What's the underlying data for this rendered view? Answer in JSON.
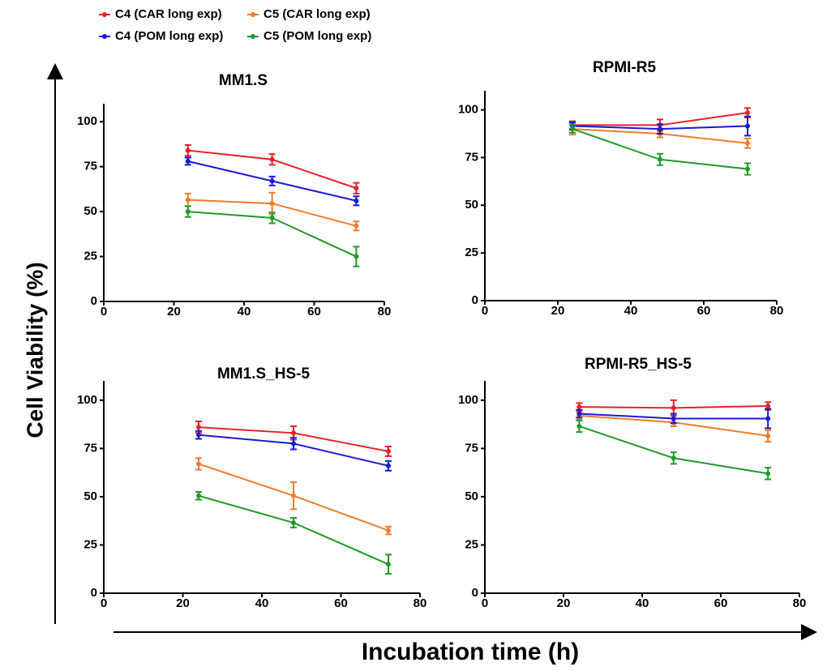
{
  "ylabel": "Cell Viability (%)",
  "xlabel": "Incubation time (h)",
  "chart_data": [
    {
      "type": "line",
      "title": "MM1.S",
      "x": [
        24,
        48,
        72
      ],
      "xlim": [
        0,
        80
      ],
      "ylim": [
        0,
        110
      ],
      "xticks": [
        0,
        20,
        40,
        60,
        80
      ],
      "yticks": [
        0,
        25,
        50,
        75,
        100
      ],
      "series": [
        {
          "name": "C4 (CAR long exp)",
          "color": "#e8202a",
          "values": [
            84,
            79,
            63
          ],
          "errors": [
            3,
            3,
            3
          ]
        },
        {
          "name": "C5 (CAR long exp)",
          "color": "#f27b2a",
          "values": [
            56.5,
            54.5,
            42
          ],
          "errors": [
            3.5,
            6,
            2.5
          ]
        },
        {
          "name": "C4 (POM long exp)",
          "color": "#1a1ad6",
          "values": [
            78,
            67,
            56
          ],
          "errors": [
            2,
            2.5,
            2.5
          ]
        },
        {
          "name": "C5 (POM long exp)",
          "color": "#1f9a2a",
          "values": [
            50,
            46.5,
            25
          ],
          "errors": [
            3,
            3,
            5.5
          ]
        }
      ]
    },
    {
      "type": "line",
      "title": "RPMI-R5",
      "x": [
        24,
        48,
        72
      ],
      "xlim": [
        0,
        80
      ],
      "ylim": [
        0,
        110
      ],
      "xticks": [
        0,
        20,
        40,
        60,
        80
      ],
      "yticks": [
        0,
        25,
        50,
        75,
        100
      ],
      "series": [
        {
          "name": "C4 (CAR long exp)",
          "color": "#e8202a",
          "values": [
            92,
            92,
            98.5
          ],
          "errors": [
            2,
            3,
            2.5
          ]
        },
        {
          "name": "C5 (CAR long exp)",
          "color": "#f27b2a",
          "values": [
            90,
            87.5,
            82.5
          ],
          "errors": [
            3,
            2,
            2.5
          ]
        },
        {
          "name": "C4 (POM long exp)",
          "color": "#1a1ad6",
          "values": [
            91.5,
            90,
            91.5
          ],
          "errors": [
            2,
            2.5,
            5
          ]
        },
        {
          "name": "C5 (POM long exp)",
          "color": "#1f9a2a",
          "values": [
            90,
            74,
            69
          ],
          "errors": [
            2,
            3,
            3
          ]
        }
      ]
    },
    {
      "type": "line",
      "title": "MM1.S_HS-5",
      "x": [
        24,
        48,
        72
      ],
      "xlim": [
        0,
        80
      ],
      "ylim": [
        0,
        110
      ],
      "xticks": [
        0,
        20,
        40,
        60,
        80
      ],
      "yticks": [
        0,
        25,
        50,
        75,
        100
      ],
      "series": [
        {
          "name": "C4 (CAR long exp)",
          "color": "#e8202a",
          "values": [
            86,
            83,
            73.5
          ],
          "errors": [
            3,
            3.5,
            2.5
          ]
        },
        {
          "name": "C5 (CAR long exp)",
          "color": "#f27b2a",
          "values": [
            67,
            50.5,
            32.5
          ],
          "errors": [
            3,
            7,
            2
          ]
        },
        {
          "name": "C4 (POM long exp)",
          "color": "#1a1ad6",
          "values": [
            82,
            77.5,
            66
          ],
          "errors": [
            2,
            3,
            2.5
          ]
        },
        {
          "name": "C5 (POM long exp)",
          "color": "#1f9a2a",
          "values": [
            50.5,
            36.5,
            15
          ],
          "errors": [
            2,
            2.5,
            5
          ]
        }
      ]
    },
    {
      "type": "line",
      "title": "RPMI-R5_HS-5",
      "x": [
        24,
        48,
        72
      ],
      "xlim": [
        0,
        80
      ],
      "ylim": [
        0,
        110
      ],
      "xticks": [
        0,
        20,
        40,
        60,
        80
      ],
      "yticks": [
        0,
        25,
        50,
        75,
        100
      ],
      "series": [
        {
          "name": "C4 (CAR long exp)",
          "color": "#e8202a",
          "values": [
            96.5,
            96,
            97
          ],
          "errors": [
            2,
            4,
            2
          ]
        },
        {
          "name": "C5 (CAR long exp)",
          "color": "#f27b2a",
          "values": [
            92,
            88.5,
            81.5
          ],
          "errors": [
            2,
            2,
            3
          ]
        },
        {
          "name": "C4 (POM long exp)",
          "color": "#1a1ad6",
          "values": [
            93,
            90.5,
            90.5
          ],
          "errors": [
            2,
            2.5,
            5
          ]
        },
        {
          "name": "C5 (POM long exp)",
          "color": "#1f9a2a",
          "values": [
            86.5,
            70,
            62
          ],
          "errors": [
            3,
            3,
            3
          ]
        }
      ]
    }
  ]
}
